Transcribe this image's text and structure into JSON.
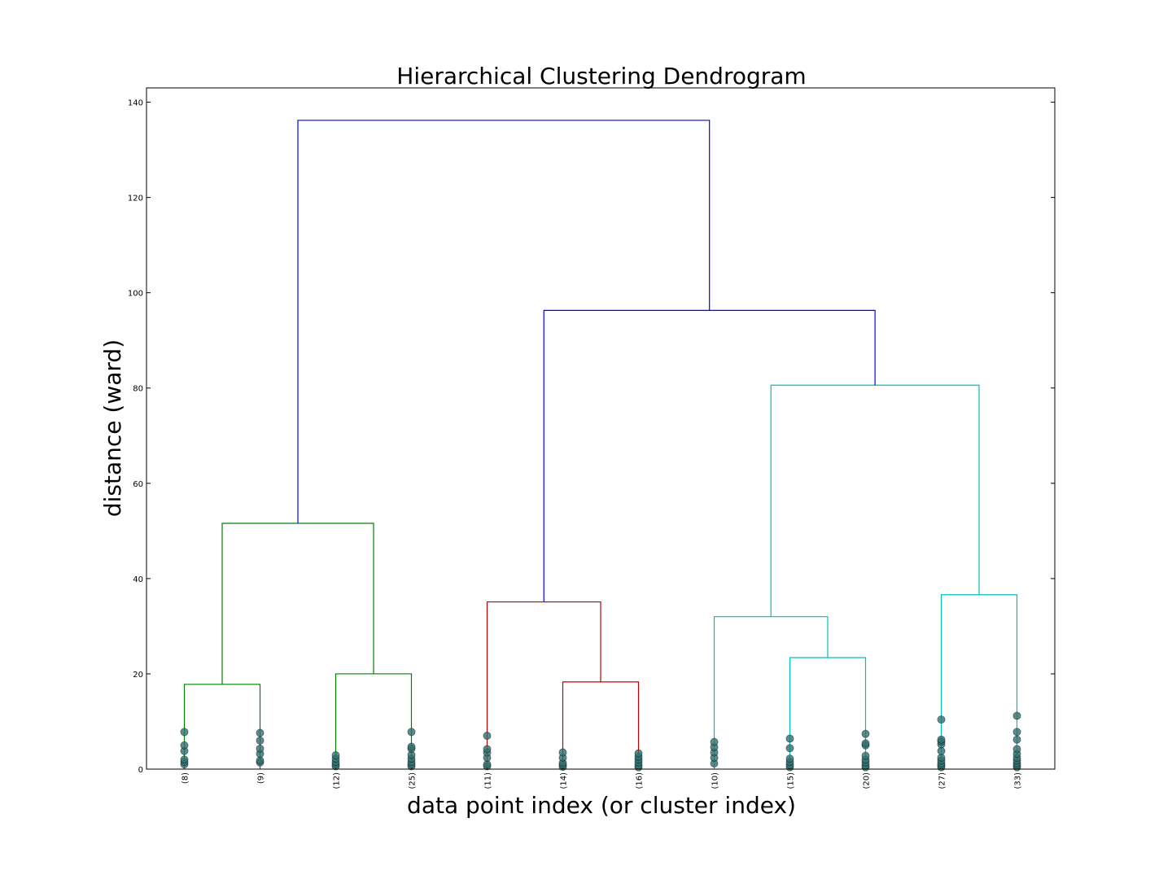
{
  "chart_data": {
    "type": "dendrogram",
    "title": "Hierarchical Clustering Dendrogram",
    "xlabel": "data point index (or cluster index)",
    "ylabel": "distance (ward)",
    "ylim": [
      0,
      143
    ],
    "yticks": [
      0,
      20,
      40,
      60,
      80,
      100,
      120,
      140
    ],
    "leaves": [
      {
        "label": "(8)",
        "points": [
          1.0,
          1.5,
          2.0,
          3.8,
          5.0,
          7.8
        ]
      },
      {
        "label": "(9)",
        "points": [
          1.4,
          1.8,
          3.2,
          4.3,
          6.0,
          7.6
        ]
      },
      {
        "label": "(12)",
        "points": [
          0.6,
          1.0,
          1.5,
          2.2,
          2.9
        ]
      },
      {
        "label": "(25)",
        "points": [
          0.6,
          1.0,
          1.5,
          2.2,
          3.0,
          4.3,
          4.7,
          7.8
        ]
      },
      {
        "label": "(11)",
        "points": [
          0.6,
          1.0,
          2.4,
          3.5,
          4.2,
          7.0
        ]
      },
      {
        "label": "(14)",
        "points": [
          0.5,
          0.9,
          1.3,
          2.4,
          3.5
        ]
      },
      {
        "label": "(16)",
        "points": [
          0.4,
          0.8,
          1.4,
          2.0,
          2.6,
          3.3
        ]
      },
      {
        "label": "(10)",
        "points": [
          1.2,
          2.4,
          3.5,
          4.6,
          5.7
        ]
      },
      {
        "label": "(15)",
        "points": [
          0.4,
          0.9,
          1.5,
          2.2,
          4.4,
          6.4
        ]
      },
      {
        "label": "(20)",
        "points": [
          0.4,
          0.8,
          1.4,
          2.0,
          2.8,
          5.0,
          5.4,
          7.4
        ]
      },
      {
        "label": "(27)",
        "points": [
          0.4,
          0.8,
          1.2,
          1.8,
          2.4,
          3.8,
          5.2,
          5.8,
          6.2,
          10.4
        ]
      },
      {
        "label": "(33)",
        "points": [
          0.4,
          0.8,
          1.2,
          1.8,
          2.4,
          3.2,
          4.2,
          6.2,
          7.8,
          11.2
        ]
      }
    ],
    "links": [
      {
        "left": 1,
        "right": 2,
        "height": 17.8,
        "color": "#008000"
      },
      {
        "left": 3,
        "right": 4,
        "height": 20.0,
        "color": "#008000"
      },
      {
        "left": 1.5,
        "right": 3.5,
        "height": 51.6,
        "color": "#008000"
      },
      {
        "left": 6,
        "right": 7,
        "height": 18.3,
        "color": "#bf0000"
      },
      {
        "left": 5,
        "right": 6.5,
        "height": 35.1,
        "color": "#bf0000"
      },
      {
        "left": 9,
        "right": 10,
        "height": 23.4,
        "color": "#00bfbf"
      },
      {
        "left": 8,
        "right": 9.5,
        "height": 32.0,
        "color": "#00bfbf"
      },
      {
        "left": 11,
        "right": 12,
        "height": 36.6,
        "color": "#00bfbf"
      },
      {
        "left": 8.75,
        "right": 11.5,
        "height": 80.6,
        "color": "#00bfbf"
      },
      {
        "left": 5.75,
        "right": 10.125,
        "height": 96.3,
        "color": "#0000ff"
      },
      {
        "left": 2.5,
        "right": 7.9375,
        "height": 136.2,
        "color": "#0000ff"
      }
    ],
    "lower_heights": {
      "1": 0,
      "2": 0,
      "3": 0,
      "4": 0,
      "5": 0,
      "6": 0,
      "7": 0,
      "8": 0,
      "9": 0,
      "10": 0,
      "11": 0,
      "12": 0,
      "1.5": 17.8,
      "3.5": 20.0,
      "2.5": 51.6,
      "6.5": 18.3,
      "5.75": 35.1,
      "9.5": 23.4,
      "8.75": 32.0,
      "11.5": 36.6,
      "10.125": 80.6,
      "7.9375": 96.3
    },
    "leaf_trunk_tops": {
      "1": 0,
      "2": 0,
      "3": 0,
      "4": 0,
      "5": 0,
      "6": 0,
      "7": 0,
      "8": 0,
      "9": 0,
      "10": 0,
      "11": 0,
      "12": 0
    },
    "marker_color": "#2f6f6f",
    "grid": false
  }
}
